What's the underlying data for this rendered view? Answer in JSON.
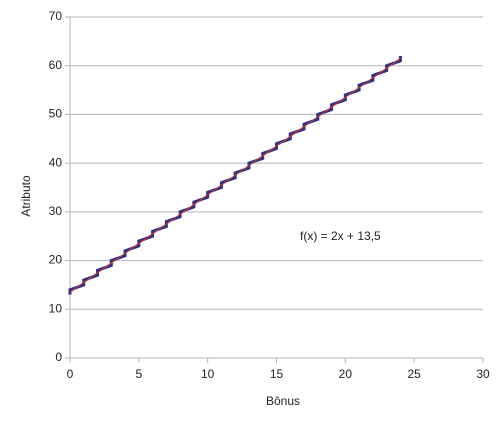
{
  "chart_data": {
    "type": "line",
    "xlabel": "Bônus",
    "ylabel": "Atributo",
    "annotation": "f(x) = 2x + 13,5",
    "series": [
      {
        "color": "#2b2f8f",
        "x": [
          0,
          0,
          1,
          1,
          2,
          2,
          3,
          3,
          4,
          4,
          5,
          5,
          6,
          6,
          7,
          7,
          8,
          8,
          9,
          9,
          10,
          10,
          11,
          11,
          12,
          12,
          13,
          13,
          14,
          14,
          15,
          15,
          16,
          16,
          17,
          17,
          18,
          18,
          19,
          19,
          20,
          20,
          21,
          21,
          22,
          22,
          23,
          23,
          24,
          24
        ],
        "values": [
          13,
          14,
          15,
          16,
          17,
          18,
          19,
          20,
          21,
          22,
          23,
          24,
          25,
          26,
          27,
          28,
          29,
          30,
          31,
          32,
          33,
          34,
          35,
          36,
          37,
          38,
          39,
          40,
          41,
          42,
          43,
          44,
          45,
          46,
          47,
          48,
          49,
          50,
          51,
          52,
          53,
          54,
          55,
          56,
          57,
          58,
          59,
          60,
          61,
          62
        ]
      },
      {
        "color": "#c0392b",
        "x": [
          0,
          24
        ],
        "values": [
          13.5,
          61.5
        ]
      }
    ],
    "xlim": [
      0,
      30
    ],
    "xticks": [
      0,
      5,
      10,
      15,
      20,
      25,
      30
    ],
    "ylim": [
      0,
      70
    ],
    "yticks": [
      0,
      10,
      20,
      30,
      40,
      50,
      60,
      70
    ],
    "grid": true
  }
}
